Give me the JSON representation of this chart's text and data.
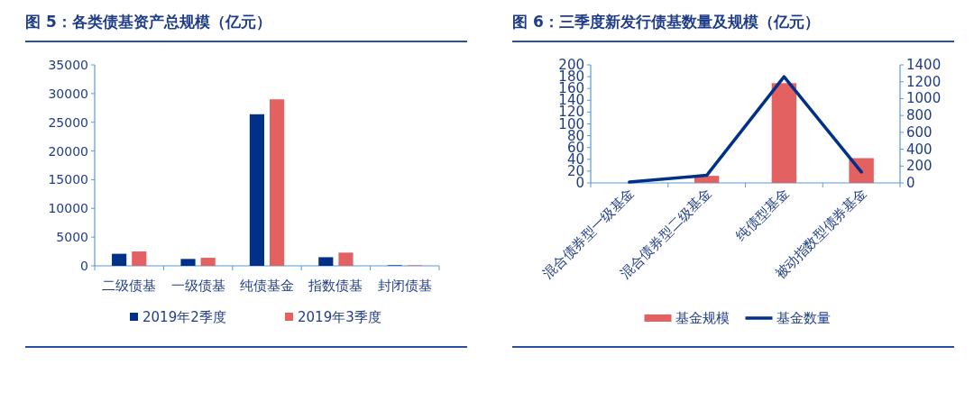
{
  "chart_data": [
    {
      "type": "bar",
      "title": "图 5：各类债基资产总规模（亿元）",
      "categories": [
        "二级债基",
        "一级债基",
        "纯债基金",
        "指数债基",
        "封闭债基"
      ],
      "series": [
        {
          "name": "2019年2季度",
          "color": "#003087",
          "values": [
            2100,
            1200,
            26400,
            1500,
            100
          ]
        },
        {
          "name": "2019年3季度",
          "color": "#e46161",
          "values": [
            2500,
            1400,
            29000,
            2300,
            100
          ]
        }
      ],
      "ylim": [
        0,
        35000
      ],
      "yticks": [
        0,
        5000,
        10000,
        15000,
        20000,
        25000,
        30000,
        35000
      ],
      "grid": false,
      "legend": "bottom"
    },
    {
      "type": "bar",
      "title": "图 6：三季度新发行债基数量及规模（亿元）",
      "categories": [
        "混合债券型一级基金",
        "混合债券型二级基金",
        "纯债型基金",
        "被动指数型债券基金"
      ],
      "series": [
        {
          "name": "基金规模",
          "color": "#e46161",
          "values": [
            null,
            12,
            169,
            42
          ]
        },
        {
          "name": "基金数量",
          "type": "line",
          "axis": "y2",
          "color": "#003087",
          "values": [
            10,
            90,
            1260,
            130
          ]
        }
      ],
      "ylim": [
        0,
        200
      ],
      "yticks": [
        0,
        20,
        40,
        60,
        80,
        100,
        120,
        140,
        160,
        180,
        200
      ],
      "y2lim": [
        0,
        1400
      ],
      "y2ticks": [
        0,
        200,
        400,
        600,
        800,
        1000,
        1200,
        1400
      ],
      "grid": false,
      "legend": "bottom"
    }
  ]
}
